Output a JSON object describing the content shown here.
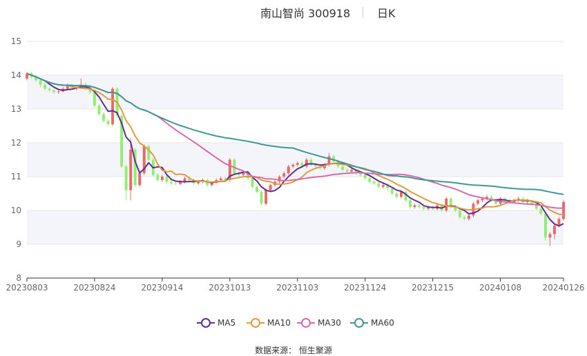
{
  "header": {
    "title": "南山智尚 300918",
    "period": "日K"
  },
  "source": "数据来源： 恒生聚源",
  "chart_data": {
    "type": "candlestick",
    "ylim": [
      8,
      15
    ],
    "yticks": [
      8,
      9,
      10,
      11,
      12,
      13,
      14,
      15
    ],
    "xtick_labels": [
      "20230803",
      "20230824",
      "20230914",
      "20231013",
      "20231103",
      "20231124",
      "20231215",
      "20240108",
      "20240126"
    ],
    "xtick_index": [
      0,
      15,
      30,
      45,
      60,
      75,
      90,
      105,
      119
    ],
    "n_days": 120,
    "colors": {
      "up": "#ee6666",
      "down": "#91ee6f",
      "grid": "#e6e6e6",
      "band": "#f3f5fa"
    },
    "legend": [
      {
        "name": "MA5",
        "color": "#5d2d91"
      },
      {
        "name": "MA10",
        "color": "#e19b3e"
      },
      {
        "name": "MA30",
        "color": "#d868a9"
      },
      {
        "name": "MA60",
        "color": "#3c9797"
      }
    ],
    "close": [
      14.05,
      13.95,
      13.85,
      13.72,
      13.6,
      13.55,
      13.5,
      13.52,
      13.6,
      13.7,
      13.62,
      13.65,
      13.72,
      13.6,
      13.5,
      13.1,
      12.85,
      12.65,
      12.55,
      13.6,
      12.8,
      11.3,
      10.6,
      11.8,
      10.75,
      11.1,
      11.9,
      11.5,
      11.05,
      10.9,
      11.0,
      10.85,
      10.8,
      10.78,
      10.85,
      10.95,
      10.9,
      10.8,
      10.85,
      10.9,
      10.75,
      10.82,
      10.9,
      10.95,
      10.9,
      11.5,
      11.1,
      11.05,
      11.1,
      10.95,
      10.7,
      10.55,
      10.2,
      10.6,
      10.75,
      10.85,
      11.0,
      11.1,
      11.3,
      11.35,
      11.4,
      11.3,
      11.5,
      11.35,
      11.3,
      11.25,
      11.35,
      11.6,
      11.45,
      11.3,
      11.2,
      11.15,
      11.2,
      11.1,
      11.05,
      10.95,
      10.85,
      10.8,
      10.7,
      10.75,
      10.65,
      10.5,
      10.4,
      10.55,
      10.3,
      10.1,
      10.15,
      10.1,
      10.05,
      10.1,
      10.05,
      10.15,
      10.0,
      10.35,
      10.1,
      10.0,
      9.8,
      9.75,
      9.85,
      10.2,
      10.3,
      10.35,
      10.4,
      10.3,
      10.2,
      10.35,
      10.3,
      10.25,
      10.3,
      10.35,
      10.25,
      10.3,
      10.2,
      10.05,
      9.9,
      9.2,
      9.3,
      9.55,
      9.75,
      10.25
    ],
    "open": [
      13.9,
      14.05,
      13.95,
      13.85,
      13.72,
      13.6,
      13.55,
      13.5,
      13.52,
      13.6,
      13.7,
      13.62,
      13.65,
      13.72,
      13.6,
      13.5,
      13.1,
      12.85,
      12.65,
      12.55,
      13.6,
      12.8,
      11.3,
      10.6,
      11.8,
      10.75,
      11.1,
      11.9,
      11.5,
      11.05,
      10.9,
      11.0,
      10.85,
      10.8,
      10.78,
      10.85,
      10.95,
      10.9,
      10.8,
      10.85,
      10.9,
      10.75,
      10.82,
      10.9,
      10.95,
      10.9,
      11.5,
      11.1,
      11.05,
      11.1,
      10.95,
      10.7,
      10.55,
      10.2,
      10.6,
      10.75,
      10.85,
      11.0,
      11.1,
      11.3,
      11.35,
      11.4,
      11.3,
      11.5,
      11.35,
      11.3,
      11.25,
      11.35,
      11.6,
      11.45,
      11.3,
      11.2,
      11.15,
      11.2,
      11.1,
      11.05,
      10.95,
      10.85,
      10.8,
      10.7,
      10.75,
      10.65,
      10.5,
      10.4,
      10.55,
      10.3,
      10.1,
      10.15,
      10.1,
      10.05,
      10.1,
      10.05,
      10.15,
      10.0,
      10.35,
      10.1,
      10.0,
      9.8,
      9.75,
      9.85,
      10.2,
      10.3,
      10.35,
      10.4,
      10.3,
      10.2,
      10.35,
      10.3,
      10.25,
      10.3,
      10.35,
      10.25,
      10.3,
      10.2,
      10.05,
      9.9,
      9.2,
      9.3,
      9.55,
      9.75
    ],
    "high": [
      14.1,
      14.1,
      14.0,
      13.9,
      13.8,
      13.65,
      13.6,
      13.6,
      13.65,
      13.75,
      13.75,
      13.7,
      13.9,
      13.8,
      13.65,
      13.55,
      13.15,
      12.9,
      12.7,
      13.65,
      13.65,
      12.85,
      11.35,
      12.15,
      11.85,
      11.15,
      11.95,
      11.95,
      11.55,
      11.1,
      11.05,
      11.05,
      10.9,
      10.85,
      10.9,
      11.0,
      11.0,
      10.95,
      10.9,
      10.95,
      10.95,
      10.85,
      10.95,
      11.0,
      11.0,
      11.55,
      11.55,
      11.15,
      11.15,
      11.15,
      11.0,
      10.75,
      10.6,
      10.65,
      10.8,
      10.9,
      11.05,
      11.15,
      11.35,
      11.4,
      11.45,
      11.45,
      11.55,
      11.55,
      11.4,
      11.35,
      11.4,
      11.7,
      11.65,
      11.5,
      11.35,
      11.25,
      11.25,
      11.25,
      11.15,
      11.1,
      11.0,
      10.9,
      10.85,
      10.8,
      10.8,
      10.7,
      10.55,
      10.6,
      10.6,
      10.35,
      10.2,
      10.2,
      10.15,
      10.15,
      10.15,
      10.2,
      10.2,
      10.4,
      10.4,
      10.15,
      10.05,
      9.85,
      9.9,
      10.25,
      10.35,
      10.4,
      10.45,
      10.45,
      10.35,
      10.4,
      10.4,
      10.35,
      10.35,
      10.4,
      10.4,
      10.35,
      10.3,
      10.25,
      10.1,
      9.95,
      9.35,
      9.6,
      9.8,
      10.3
    ],
    "low": [
      13.85,
      13.9,
      13.8,
      13.65,
      13.55,
      13.5,
      13.45,
      13.45,
      13.5,
      13.55,
      13.55,
      13.55,
      13.6,
      13.55,
      13.45,
      13.05,
      12.8,
      12.6,
      12.5,
      12.5,
      12.75,
      11.25,
      10.3,
      10.3,
      10.7,
      10.7,
      11.05,
      11.45,
      11.0,
      10.85,
      10.85,
      10.8,
      10.75,
      10.75,
      10.75,
      10.8,
      10.85,
      10.75,
      10.75,
      10.8,
      10.7,
      10.7,
      10.8,
      10.85,
      10.85,
      10.85,
      11.05,
      11.0,
      11.0,
      10.9,
      10.65,
      10.5,
      10.15,
      10.15,
      10.55,
      10.7,
      10.8,
      10.95,
      11.05,
      11.25,
      11.3,
      11.25,
      11.25,
      11.3,
      11.25,
      11.2,
      11.2,
      11.3,
      11.4,
      11.25,
      11.15,
      11.1,
      11.1,
      11.05,
      11.0,
      10.9,
      10.8,
      10.75,
      10.65,
      10.65,
      10.6,
      10.45,
      10.35,
      10.35,
      10.25,
      10.05,
      10.05,
      10.05,
      10.0,
      10.0,
      10.0,
      10.0,
      9.95,
      9.95,
      10.05,
      9.95,
      9.75,
      9.7,
      9.7,
      9.8,
      10.15,
      10.25,
      10.3,
      10.25,
      10.15,
      10.15,
      10.25,
      10.2,
      10.2,
      10.25,
      10.2,
      10.2,
      10.15,
      10.0,
      9.85,
      9.1,
      8.95,
      9.15,
      9.5,
      9.7
    ]
  }
}
